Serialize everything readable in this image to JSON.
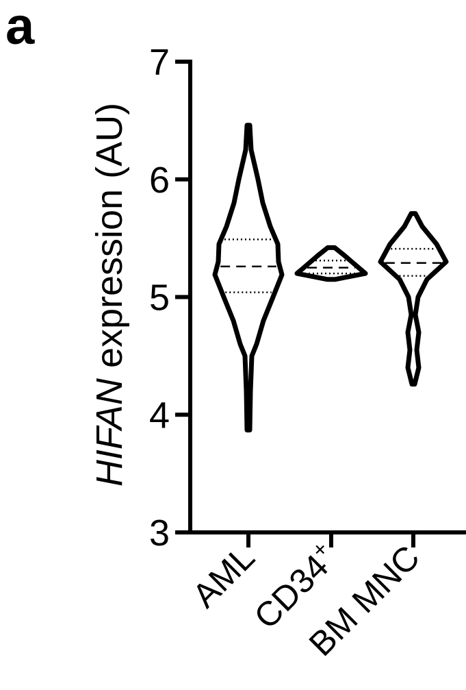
{
  "panel_label": "a",
  "chart_data": {
    "type": "violin",
    "ylabel_gene": "HIFAN",
    "ylabel_rest": " expression (AU)",
    "xlabel": "",
    "ylim": [
      3,
      7
    ],
    "yticks": [
      3,
      4,
      5,
      6,
      7
    ],
    "categories": [
      {
        "label": "AML",
        "sup": ""
      },
      {
        "label": "CD34",
        "sup": "+"
      },
      {
        "label": "BM MNC",
        "sup": ""
      }
    ],
    "series": [
      {
        "category": "AML",
        "median": 5.26,
        "q1": 5.04,
        "q3": 5.49,
        "min": 3.87,
        "max": 6.46,
        "profile": [
          [
            3.87,
            0.02
          ],
          [
            4.2,
            0.03
          ],
          [
            4.5,
            0.05
          ],
          [
            4.6,
            0.12
          ],
          [
            4.8,
            0.22
          ],
          [
            5.0,
            0.36
          ],
          [
            5.19,
            0.49
          ],
          [
            5.3,
            0.44
          ],
          [
            5.45,
            0.43
          ],
          [
            5.6,
            0.32
          ],
          [
            5.8,
            0.21
          ],
          [
            6.0,
            0.14
          ],
          [
            6.1,
            0.1
          ],
          [
            6.25,
            0.04
          ],
          [
            6.46,
            0.02
          ]
        ]
      },
      {
        "category": "CD34+",
        "median": 5.25,
        "q1": 5.2,
        "q3": 5.31,
        "min": 5.15,
        "max": 5.42,
        "profile": [
          [
            5.15,
            0.06
          ],
          [
            5.2,
            0.5
          ],
          [
            5.25,
            0.4
          ],
          [
            5.3,
            0.3
          ],
          [
            5.36,
            0.18
          ],
          [
            5.42,
            0.05
          ]
        ]
      },
      {
        "category": "BM MNC",
        "median": 5.29,
        "q1": 5.18,
        "q3": 5.41,
        "min": 4.26,
        "max": 5.71,
        "profile": [
          [
            4.26,
            0.02
          ],
          [
            4.4,
            0.08
          ],
          [
            4.55,
            0.05
          ],
          [
            4.7,
            0.08
          ],
          [
            4.85,
            0.03
          ],
          [
            5.0,
            0.07
          ],
          [
            5.15,
            0.2
          ],
          [
            5.3,
            0.48
          ],
          [
            5.45,
            0.34
          ],
          [
            5.6,
            0.13
          ],
          [
            5.71,
            0.03
          ]
        ]
      }
    ]
  }
}
